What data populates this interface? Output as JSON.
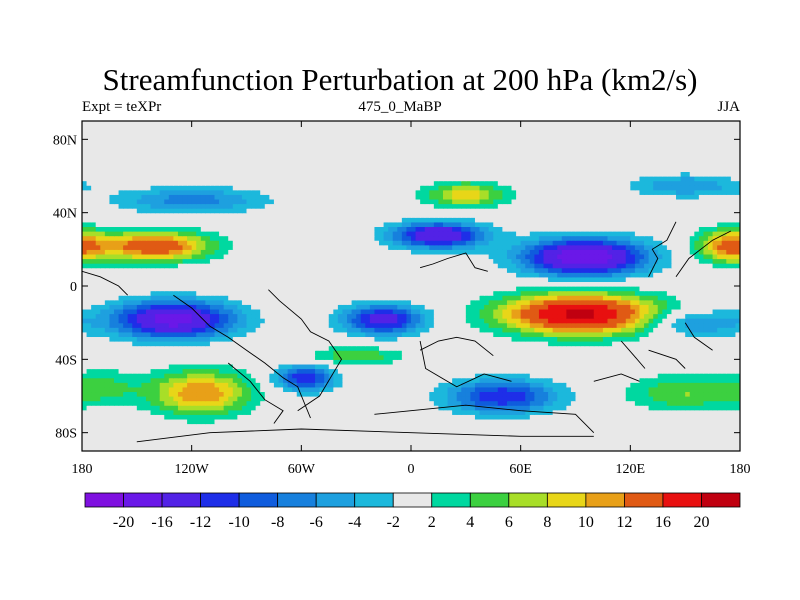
{
  "header": {
    "title": "Streamfunction Perturbation at 200 hPa (km2/s)",
    "left_label": "Expt = teXPr",
    "center_label": "475_0_MaBP",
    "right_label": "JJA"
  },
  "chart_data": {
    "type": "heatmap",
    "title": "Streamfunction Perturbation at 200 hPa (km2/s)",
    "units": "km2/s",
    "x_range": [
      -180,
      180
    ],
    "y_range": [
      -90,
      90
    ],
    "x_ticks": [
      {
        "value": -180,
        "label": "180"
      },
      {
        "value": -120,
        "label": "120W"
      },
      {
        "value": -60,
        "label": "60W"
      },
      {
        "value": 0,
        "label": "0"
      },
      {
        "value": 60,
        "label": "60E"
      },
      {
        "value": 120,
        "label": "120E"
      },
      {
        "value": 180,
        "label": "180"
      }
    ],
    "y_ticks": [
      {
        "value": 80,
        "label": "80N"
      },
      {
        "value": 40,
        "label": "40N"
      },
      {
        "value": 0,
        "label": "0"
      },
      {
        "value": -40,
        "label": "40S"
      },
      {
        "value": -80,
        "label": "80S"
      }
    ],
    "levels": [
      -20,
      -16,
      -12,
      -10,
      -8,
      -6,
      -4,
      -2,
      2,
      4,
      6,
      8,
      10,
      12,
      16,
      20
    ],
    "level_labels": [
      "-20",
      "-16",
      "-12",
      "-10",
      "-8",
      "-6",
      "-4",
      "-2",
      "2",
      "4",
      "6",
      "8",
      "10",
      "12",
      "16",
      "20"
    ],
    "colors": [
      "#7f10e0",
      "#6a18e8",
      "#5222e6",
      "#1e2ee8",
      "#0f5cdd",
      "#1780dd",
      "#1ea0df",
      "#1cb8dc",
      "#e8e8e8",
      "#00d8a0",
      "#3cd040",
      "#a8de28",
      "#e8d618",
      "#e8a018",
      "#e05a14",
      "#e81010",
      "#c00010"
    ],
    "centers": [
      {
        "lon": -140,
        "lat": 22,
        "amp": 15,
        "slon": 30,
        "slat": 8
      },
      {
        "lon": 175,
        "lat": 22,
        "amp": 13,
        "slon": 18,
        "slat": 9
      },
      {
        "lon": -130,
        "lat": -18,
        "amp": -18,
        "slon": 33,
        "slat": 10
      },
      {
        "lon": -15,
        "lat": -18,
        "amp": -14,
        "slon": 22,
        "slat": 8
      },
      {
        "lon": 92,
        "lat": -15,
        "amp": 21,
        "slon": 42,
        "slat": 11
      },
      {
        "lon": 15,
        "lat": 28,
        "amp": -16,
        "slon": 25,
        "slat": 7
      },
      {
        "lon": 95,
        "lat": 16,
        "amp": -20,
        "slon": 33,
        "slat": 10
      },
      {
        "lon": 30,
        "lat": 50,
        "amp": 9,
        "slon": 22,
        "slat": 7
      },
      {
        "lon": -115,
        "lat": -58,
        "amp": 12,
        "slon": 27,
        "slat": 12
      },
      {
        "lon": -58,
        "lat": -50,
        "amp": -12,
        "slon": 16,
        "slat": 7
      },
      {
        "lon": 50,
        "lat": -60,
        "amp": -12,
        "slon": 30,
        "slat": 9
      },
      {
        "lon": -30,
        "lat": -38,
        "amp": 6,
        "slon": 25,
        "slat": 5
      },
      {
        "lon": -120,
        "lat": 47,
        "amp": -7,
        "slon": 40,
        "slat": 7
      },
      {
        "lon": 150,
        "lat": 55,
        "amp": -6,
        "slon": 30,
        "slat": 6
      },
      {
        "lon": 155,
        "lat": -20,
        "amp": -7,
        "slon": 25,
        "slat": 7
      },
      {
        "lon": 150,
        "lat": -58,
        "amp": 6,
        "slon": 32,
        "slat": 10
      },
      {
        "lon": -168,
        "lat": -55,
        "amp": 4,
        "slon": 20,
        "slat": 10
      }
    ],
    "coastlines": [
      [
        [
          -130,
          -5
        ],
        [
          -120,
          -12
        ],
        [
          -110,
          -22
        ],
        [
          -100,
          -28
        ],
        [
          -90,
          -35
        ],
        [
          -80,
          -42
        ],
        [
          -70,
          -50
        ],
        [
          -62,
          -55
        ],
        [
          -55,
          -72
        ]
      ],
      [
        [
          -78,
          -2
        ],
        [
          -72,
          -8
        ],
        [
          -60,
          -18
        ],
        [
          -55,
          -25
        ],
        [
          -45,
          -30
        ],
        [
          -38,
          -40
        ],
        [
          -50,
          -60
        ],
        [
          -62,
          -68
        ]
      ],
      [
        [
          -100,
          -42
        ],
        [
          -88,
          -52
        ],
        [
          -80,
          -62
        ],
        [
          -70,
          -68
        ],
        [
          -75,
          -75
        ]
      ],
      [
        [
          5,
          -35
        ],
        [
          15,
          -30
        ],
        [
          25,
          -28
        ],
        [
          35,
          -30
        ],
        [
          45,
          -38
        ]
      ],
      [
        [
          5,
          -30
        ],
        [
          8,
          -45
        ],
        [
          25,
          -55
        ],
        [
          40,
          -48
        ],
        [
          55,
          -52
        ]
      ],
      [
        [
          100,
          -52
        ],
        [
          115,
          -48
        ],
        [
          125,
          -52
        ]
      ],
      [
        [
          5,
          10
        ],
        [
          12,
          12
        ],
        [
          20,
          15
        ],
        [
          30,
          18
        ],
        [
          35,
          10
        ],
        [
          42,
          8
        ]
      ],
      [
        [
          130,
          5
        ],
        [
          135,
          15
        ],
        [
          132,
          20
        ],
        [
          140,
          25
        ],
        [
          145,
          35
        ]
      ],
      [
        [
          -20,
          -70
        ],
        [
          0,
          -68
        ],
        [
          30,
          -65
        ],
        [
          60,
          -68
        ],
        [
          90,
          -70
        ],
        [
          100,
          -80
        ]
      ],
      [
        [
          -150,
          -85
        ],
        [
          -110,
          -80
        ],
        [
          -60,
          -78
        ],
        [
          0,
          -80
        ],
        [
          60,
          -82
        ],
        [
          100,
          -82
        ]
      ],
      [
        [
          145,
          5
        ],
        [
          152,
          15
        ],
        [
          165,
          25
        ],
        [
          175,
          30
        ]
      ],
      [
        [
          150,
          -20
        ],
        [
          155,
          -28
        ],
        [
          165,
          -35
        ]
      ],
      [
        [
          -180,
          8
        ],
        [
          -170,
          5
        ],
        [
          -160,
          0
        ],
        [
          -155,
          -5
        ]
      ],
      [
        [
          130,
          -35
        ],
        [
          145,
          -40
        ],
        [
          150,
          -45
        ]
      ],
      [
        [
          115,
          -30
        ],
        [
          122,
          -38
        ],
        [
          128,
          -45
        ]
      ]
    ]
  }
}
